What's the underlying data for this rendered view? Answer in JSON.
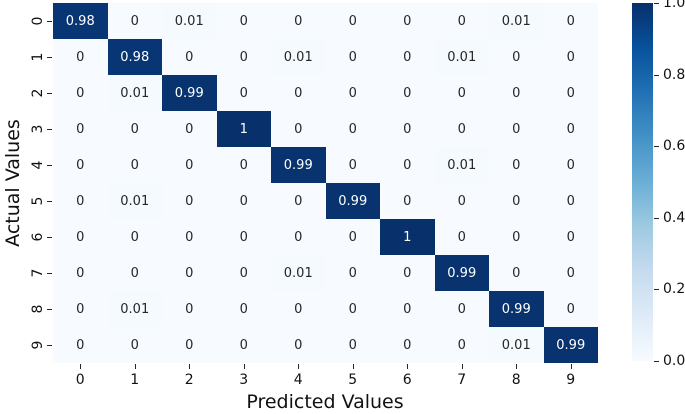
{
  "chart_data": {
    "type": "heatmap",
    "title": "",
    "xlabel": "Predicted Values",
    "ylabel": "Actual Values",
    "x_tick_labels": [
      "0",
      "1",
      "2",
      "3",
      "4",
      "5",
      "6",
      "7",
      "8",
      "9"
    ],
    "y_tick_labels": [
      "0",
      "1",
      "2",
      "3",
      "4",
      "5",
      "6",
      "7",
      "8",
      "9"
    ],
    "matrix": [
      [
        0.98,
        0,
        0.01,
        0,
        0,
        0,
        0,
        0,
        0.01,
        0
      ],
      [
        0,
        0.98,
        0,
        0,
        0.01,
        0,
        0,
        0.01,
        0,
        0
      ],
      [
        0,
        0.01,
        0.99,
        0,
        0,
        0,
        0,
        0,
        0,
        0
      ],
      [
        0,
        0,
        0,
        1,
        0,
        0,
        0,
        0,
        0,
        0
      ],
      [
        0,
        0,
        0,
        0,
        0.99,
        0,
        0,
        0.01,
        0,
        0
      ],
      [
        0,
        0.01,
        0,
        0,
        0,
        0.99,
        0,
        0,
        0,
        0
      ],
      [
        0,
        0,
        0,
        0,
        0,
        0,
        1,
        0,
        0,
        0
      ],
      [
        0,
        0,
        0,
        0,
        0.01,
        0,
        0,
        0.99,
        0,
        0
      ],
      [
        0,
        0.01,
        0,
        0,
        0,
        0,
        0,
        0,
        0.99,
        0
      ],
      [
        0,
        0,
        0,
        0,
        0,
        0,
        0,
        0,
        0.01,
        0.99
      ]
    ],
    "annotations": [
      [
        "0.98",
        "0",
        "0.01",
        "0",
        "0",
        "0",
        "0",
        "0",
        "0.01",
        "0"
      ],
      [
        "0",
        "0.98",
        "0",
        "0",
        "0.01",
        "0",
        "0",
        "0.01",
        "0",
        "0"
      ],
      [
        "0",
        "0.01",
        "0.99",
        "0",
        "0",
        "0",
        "0",
        "0",
        "0",
        "0"
      ],
      [
        "0",
        "0",
        "0",
        "1",
        "0",
        "0",
        "0",
        "0",
        "0",
        "0"
      ],
      [
        "0",
        "0",
        "0",
        "0",
        "0.99",
        "0",
        "0",
        "0.01",
        "0",
        "0"
      ],
      [
        "0",
        "0.01",
        "0",
        "0",
        "0",
        "0.99",
        "0",
        "0",
        "0",
        "0"
      ],
      [
        "0",
        "0",
        "0",
        "0",
        "0",
        "0",
        "1",
        "0",
        "0",
        "0"
      ],
      [
        "0",
        "0",
        "0",
        "0",
        "0.01",
        "0",
        "0",
        "0.99",
        "0",
        "0"
      ],
      [
        "0",
        "0.01",
        "0",
        "0",
        "0",
        "0",
        "0",
        "0",
        "0.99",
        "0"
      ],
      [
        "0",
        "0",
        "0",
        "0",
        "0",
        "0",
        "0",
        "0",
        "0.01",
        "0.99"
      ]
    ],
    "vmin": 0,
    "vmax": 1,
    "colorbar_ticks": [
      {
        "value": 1.0,
        "label": "1.0"
      },
      {
        "value": 0.8,
        "label": "0.8"
      },
      {
        "value": 0.6,
        "label": "0.6"
      },
      {
        "value": 0.4,
        "label": "0.4"
      },
      {
        "value": 0.2,
        "label": "0.2"
      },
      {
        "value": 0.0,
        "label": "0.0"
      }
    ],
    "colormap": {
      "name": "Blues",
      "stops": [
        [
          0.0,
          "#f7fbff"
        ],
        [
          0.125,
          "#deebf7"
        ],
        [
          0.25,
          "#c6dbef"
        ],
        [
          0.375,
          "#9ecae1"
        ],
        [
          0.5,
          "#6baed6"
        ],
        [
          0.625,
          "#4292c6"
        ],
        [
          0.75,
          "#2171b5"
        ],
        [
          0.875,
          "#08519c"
        ],
        [
          1.0,
          "#08306b"
        ]
      ]
    },
    "annotation_text_colors": {
      "dark_cells": "#ffffff",
      "light_cells": "#262626"
    },
    "grid": false,
    "legend_position": "colorbar-right"
  }
}
